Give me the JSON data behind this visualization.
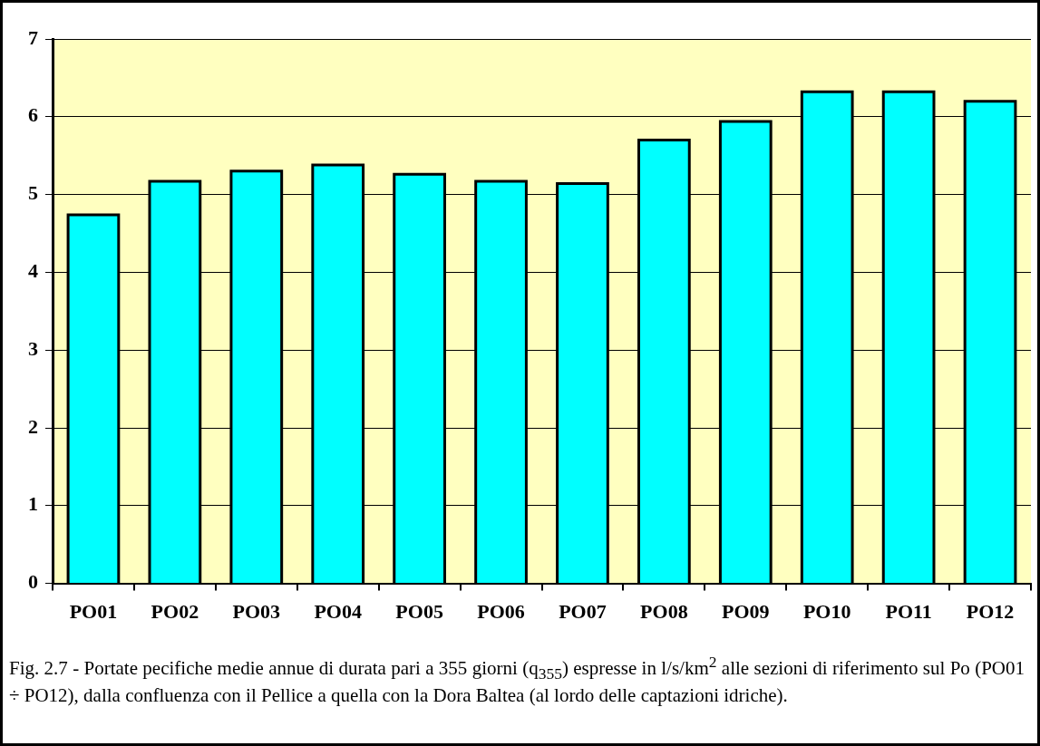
{
  "chart_data": {
    "type": "bar",
    "categories": [
      "PO01",
      "PO02",
      "PO03",
      "PO04",
      "PO05",
      "PO06",
      "PO07",
      "PO08",
      "PO09",
      "PO10",
      "PO11",
      "PO12"
    ],
    "values": [
      4.74,
      5.17,
      5.3,
      5.38,
      5.26,
      5.17,
      5.14,
      5.7,
      5.94,
      6.32,
      6.32,
      6.2
    ],
    "color": "#00ffff",
    "ylim": [
      0,
      7
    ],
    "yticks": [
      0,
      1,
      2,
      3,
      4,
      5,
      6,
      7
    ],
    "grid": "y",
    "annotations": [
      "Fig. 2.7 - Portate pecifiche medie annue di durata pari a 355 giorni (q$_{355}$) espresse in l/s/km$^{2}$ alle sezioni di riferimento sul Po (PO01 ÷ PO12), dalla confluenza con il Pellice a quella con la Dora Baltea (al lordo delle captazioni idriche)."
    ]
  }
}
